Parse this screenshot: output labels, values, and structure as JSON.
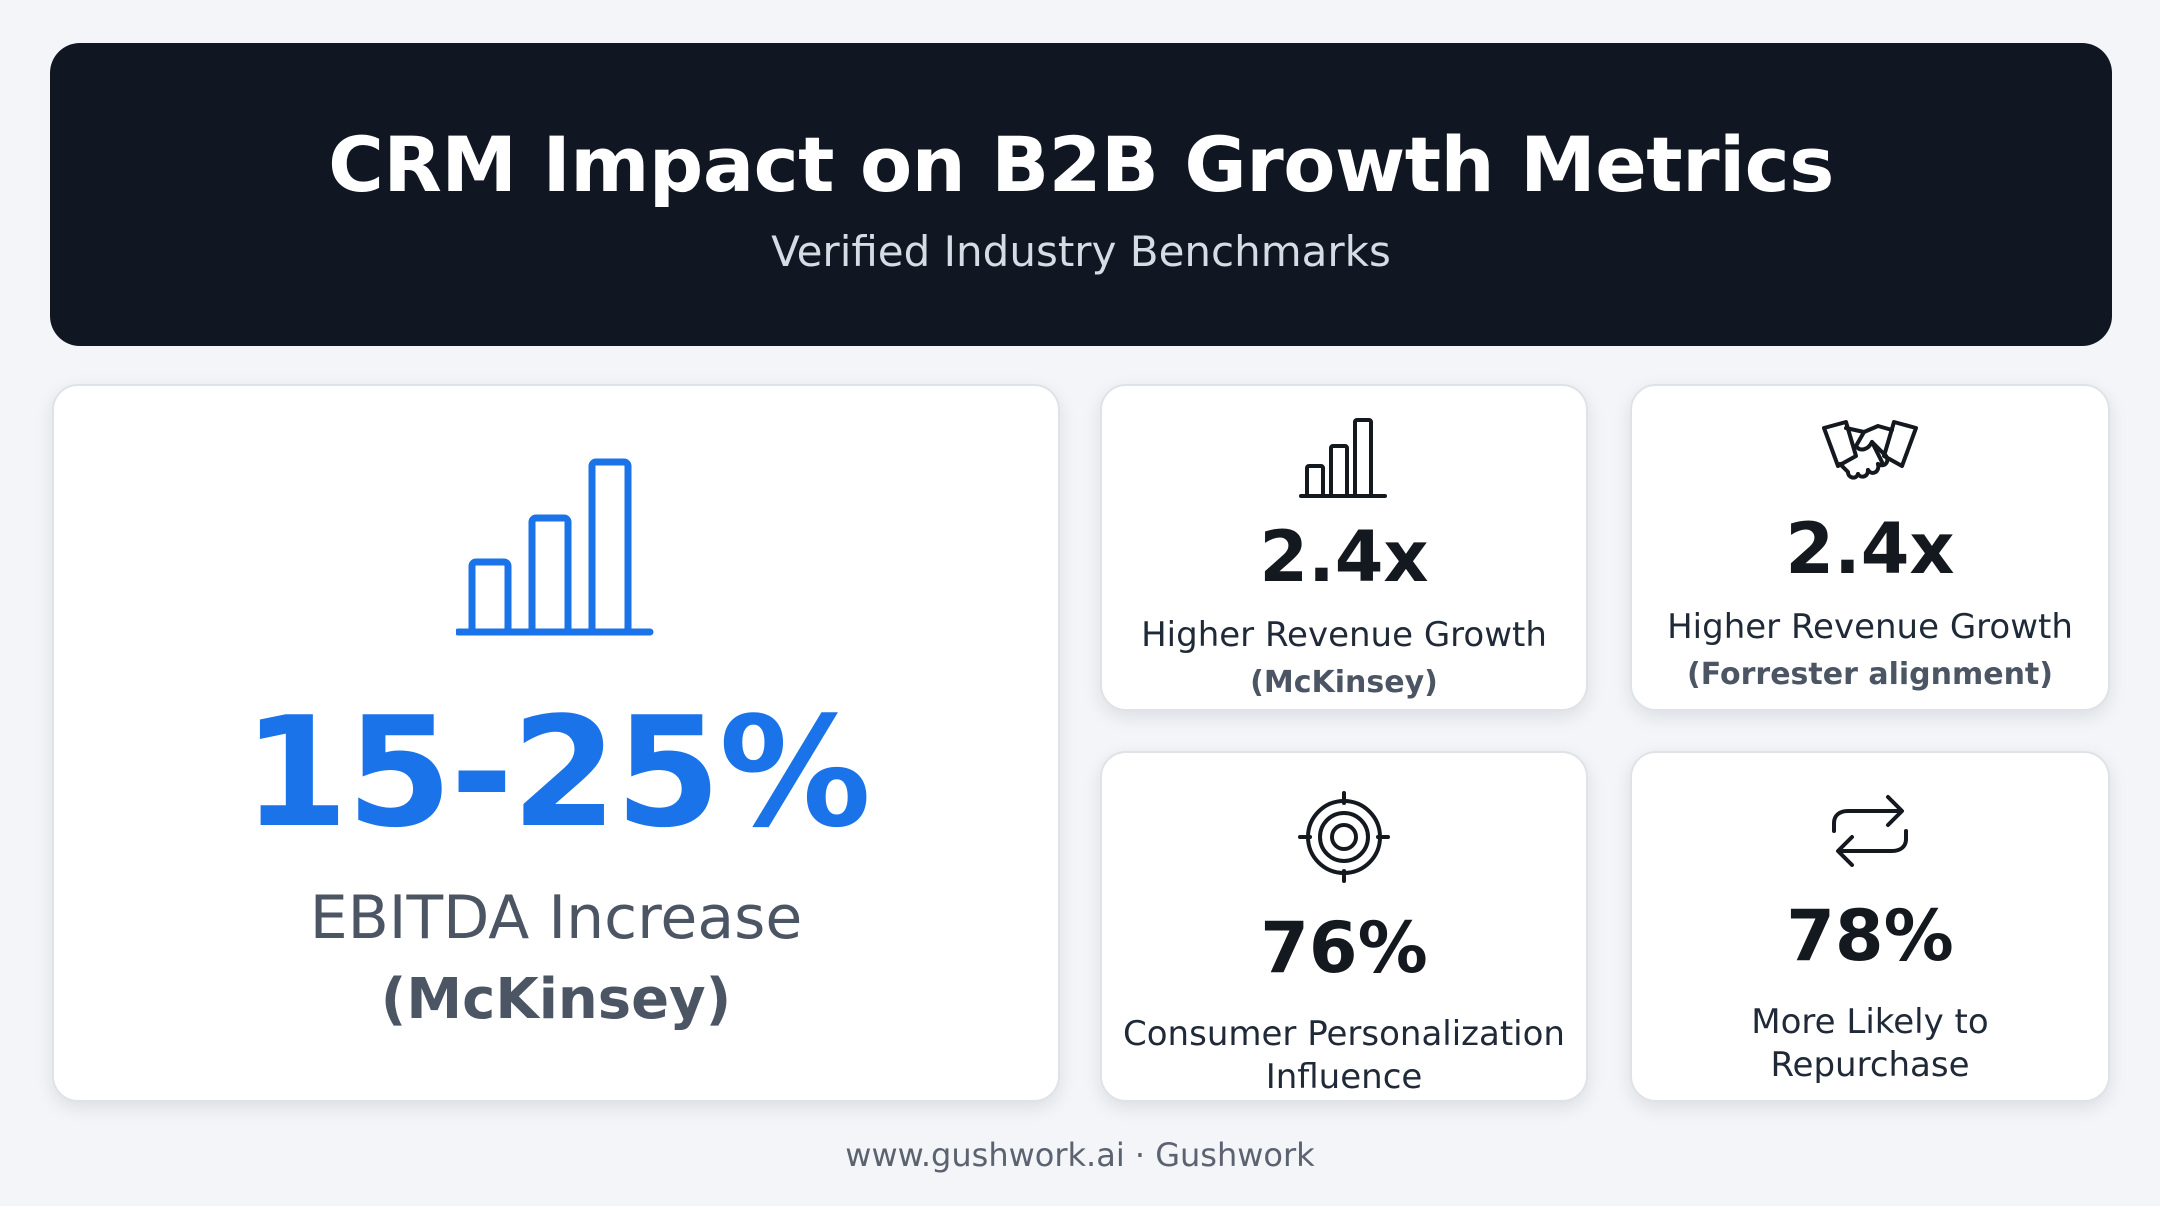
{
  "header": {
    "title": "CRM Impact on B2B Growth Metrics",
    "subtitle": "Verified Industry Benchmarks"
  },
  "main_card": {
    "icon": "bar-chart-icon",
    "value": "15-25%",
    "label": "EBITDA Increase",
    "source": "(McKinsey)",
    "accent_color": "#1a73e8"
  },
  "cards": [
    {
      "icon": "bar-chart-icon",
      "value": "2.4x",
      "label": "Higher Revenue Growth",
      "source": "(McKinsey)"
    },
    {
      "icon": "handshake-icon",
      "value": "2.4x",
      "label": "Higher Revenue Growth",
      "source": "(Forrester alignment)"
    },
    {
      "icon": "target-icon",
      "value": "76%",
      "label_line1": "Consumer Personalization",
      "label_line2": "Influence"
    },
    {
      "icon": "repeat-icon",
      "value": "78%",
      "label_line1": "More Likely to",
      "label_line2": "Repurchase"
    }
  ],
  "footer": {
    "text": "www.gushwork.ai · Gushwork"
  }
}
